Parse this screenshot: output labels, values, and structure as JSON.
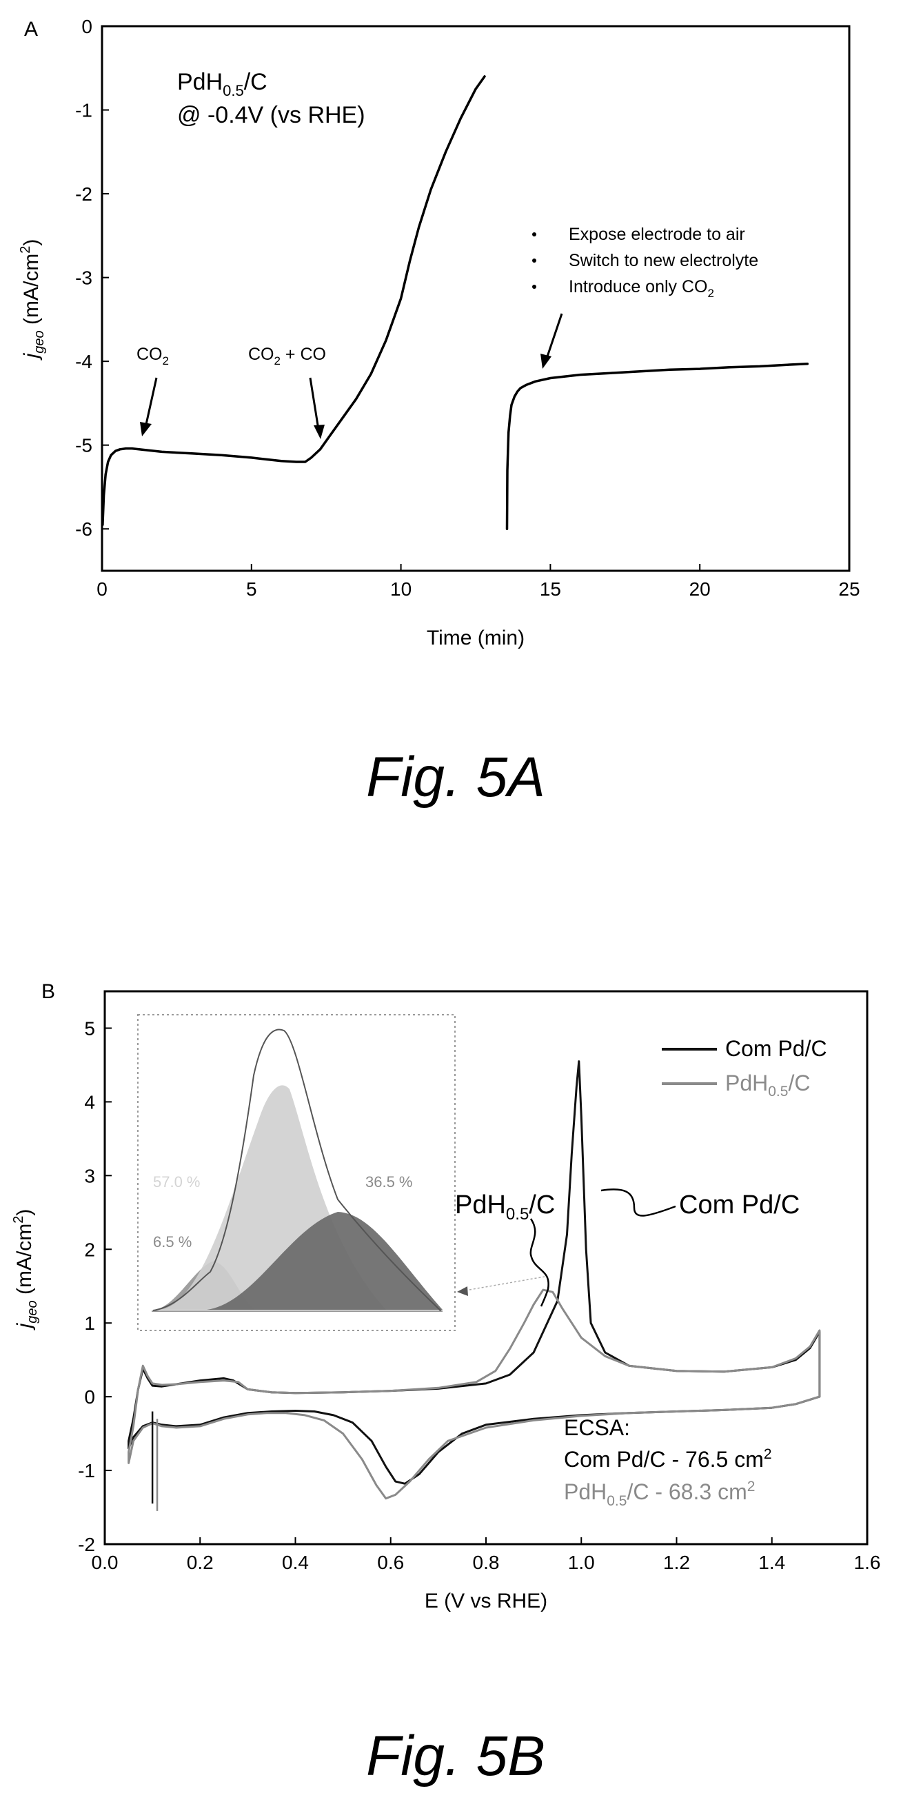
{
  "chart_data": [
    {
      "type": "line",
      "panel_label": "A",
      "xlabel": "Time (min)",
      "ylabel": {
        "base": "j",
        "sub": "geo",
        "rest": " (mA/cm",
        "sup": "2",
        "end": ")"
      },
      "xlim": [
        0,
        25
      ],
      "ylim": [
        -6.5,
        0
      ],
      "xticks": [
        0,
        5,
        10,
        15,
        20,
        25
      ],
      "yticks": [
        0,
        -1,
        -2,
        -3,
        -4,
        -5,
        -6
      ],
      "condition": {
        "line1_a": "PdH",
        "line1_sub": "0.5",
        "line1_b": "/C",
        "line2": "@ -0.4V (vs RHE)"
      },
      "annotations": [
        {
          "id": "co2",
          "base": "CO",
          "sub": "2",
          "rest": ""
        },
        {
          "id": "co2co",
          "base": "CO",
          "sub": "2",
          "rest": " + CO"
        }
      ],
      "bullets": [
        "Expose electrode to air",
        "Switch to new electrolyte",
        "Introduce only CO",
        "2"
      ],
      "series": [
        {
          "x": [
            0.02,
            0.06,
            0.12,
            0.2,
            0.3,
            0.45,
            0.6,
            0.8,
            1.0,
            1.5,
            2.0,
            2.5,
            3,
            4,
            5,
            5.5,
            6,
            6.5,
            6.8,
            7.0,
            7.3,
            7.6,
            8.0,
            8.5,
            9.0,
            9.5,
            10.0,
            10.3,
            10.6,
            11.0,
            11.5,
            12.0,
            12.5,
            12.8
          ],
          "y": [
            -5.95,
            -5.6,
            -5.35,
            -5.2,
            -5.12,
            -5.07,
            -5.05,
            -5.04,
            -5.04,
            -5.06,
            -5.08,
            -5.09,
            -5.1,
            -5.12,
            -5.15,
            -5.17,
            -5.19,
            -5.2,
            -5.2,
            -5.15,
            -5.05,
            -4.9,
            -4.7,
            -4.45,
            -4.15,
            -3.75,
            -3.25,
            -2.8,
            -2.4,
            -1.95,
            -1.5,
            -1.1,
            -0.75,
            -0.6
          ]
        },
        {
          "x": [
            13.55,
            13.56,
            13.6,
            13.65,
            13.7,
            13.8,
            13.9,
            14.0,
            14.2,
            14.5,
            15,
            16,
            17,
            18,
            19,
            20,
            21,
            22,
            23,
            23.6
          ],
          "y": [
            -6.0,
            -5.3,
            -4.85,
            -4.65,
            -4.52,
            -4.42,
            -4.36,
            -4.32,
            -4.28,
            -4.24,
            -4.2,
            -4.16,
            -4.14,
            -4.12,
            -4.1,
            -4.09,
            -4.07,
            -4.06,
            -4.04,
            -4.03
          ]
        }
      ]
    },
    {
      "type": "line",
      "panel_label": "B",
      "xlabel": "E (V vs RHE)",
      "ylabel": {
        "base": "j",
        "sub": "geo",
        "rest": " (mA/cm",
        "sup": "2",
        "end": ")"
      },
      "xlim": [
        0.0,
        1.6
      ],
      "ylim": [
        -2,
        5.5
      ],
      "xticks": [
        "0.0",
        "0.2",
        "0.4",
        "0.6",
        "0.8",
        "1.0",
        "1.2",
        "1.4",
        "1.6"
      ],
      "yticks": [
        5,
        4,
        3,
        2,
        1,
        0,
        -1,
        -2
      ],
      "legend": {
        "position": "top-right",
        "entries": [
          {
            "label": "Com Pd/C",
            "color": "#111111"
          },
          {
            "label_a": "PdH",
            "label_sub": "0.5",
            "label_b": "/C",
            "color": "#8a8a8a"
          }
        ]
      },
      "curve_labels": {
        "pdh_a": "PdH",
        "pdh_sub": "0.5",
        "pdh_b": "/C",
        "com": "Com Pd/C"
      },
      "ecsa": {
        "title": "ECSA:",
        "com": "Com Pd/C - 76.5 cm",
        "com_sup": "2",
        "pdh_a": "PdH",
        "pdh_sub": "0.5",
        "pdh_b": "/C - 68.3 cm",
        "pdh_sup": "2"
      },
      "inset": {
        "labels": [
          "57.0 %",
          "36.5 %",
          "6.5 %"
        ]
      },
      "series": [
        {
          "name": "Com Pd/C",
          "color": "#111111",
          "x": [
            0.05,
            0.06,
            0.07,
            0.08,
            0.09,
            0.1,
            0.12,
            0.15,
            0.2,
            0.25,
            0.27,
            0.3,
            0.35,
            0.4,
            0.5,
            0.6,
            0.7,
            0.8,
            0.85,
            0.9,
            0.95,
            0.97,
            0.98,
            0.99,
            0.995,
            1.0,
            1.01,
            1.02,
            1.05,
            1.1,
            1.2,
            1.3,
            1.4,
            1.45,
            1.48,
            1.5,
            1.5,
            1.45,
            1.4,
            1.3,
            1.2,
            1.1,
            1.0,
            0.9,
            0.8,
            0.75,
            0.7,
            0.66,
            0.63,
            0.61,
            0.59,
            0.56,
            0.52,
            0.48,
            0.44,
            0.4,
            0.35,
            0.3,
            0.25,
            0.2,
            0.15,
            0.12,
            0.1,
            0.08,
            0.06,
            0.05
          ],
          "y": [
            -0.6,
            -0.3,
            0.1,
            0.38,
            0.25,
            0.15,
            0.14,
            0.17,
            0.22,
            0.25,
            0.22,
            0.1,
            0.06,
            0.05,
            0.06,
            0.08,
            0.11,
            0.18,
            0.3,
            0.6,
            1.3,
            2.2,
            3.3,
            4.2,
            4.55,
            3.8,
            2.0,
            1.0,
            0.6,
            0.42,
            0.35,
            0.34,
            0.4,
            0.5,
            0.66,
            0.88,
            0.0,
            -0.1,
            -0.15,
            -0.18,
            -0.2,
            -0.22,
            -0.25,
            -0.3,
            -0.38,
            -0.5,
            -0.75,
            -1.05,
            -1.18,
            -1.15,
            -0.95,
            -0.6,
            -0.35,
            -0.25,
            -0.2,
            -0.19,
            -0.2,
            -0.22,
            -0.28,
            -0.38,
            -0.4,
            -0.38,
            -0.35,
            -0.4,
            -0.55,
            -0.7
          ]
        },
        {
          "name": "PdH0.5/C",
          "color": "#8a8a8a",
          "x": [
            0.05,
            0.06,
            0.07,
            0.08,
            0.09,
            0.1,
            0.12,
            0.15,
            0.2,
            0.25,
            0.28,
            0.3,
            0.35,
            0.4,
            0.5,
            0.6,
            0.7,
            0.78,
            0.82,
            0.85,
            0.88,
            0.9,
            0.92,
            0.94,
            0.96,
            1.0,
            1.05,
            1.1,
            1.2,
            1.3,
            1.4,
            1.45,
            1.48,
            1.5,
            1.5,
            1.45,
            1.4,
            1.3,
            1.2,
            1.1,
            1.0,
            0.9,
            0.8,
            0.72,
            0.68,
            0.64,
            0.61,
            0.59,
            0.57,
            0.54,
            0.5,
            0.46,
            0.42,
            0.38,
            0.34,
            0.3,
            0.25,
            0.2,
            0.15,
            0.12,
            0.1,
            0.08,
            0.06,
            0.05
          ],
          "y": [
            -0.75,
            -0.4,
            0.1,
            0.42,
            0.28,
            0.18,
            0.16,
            0.17,
            0.2,
            0.22,
            0.2,
            0.1,
            0.06,
            0.05,
            0.06,
            0.08,
            0.12,
            0.2,
            0.35,
            0.65,
            1.0,
            1.25,
            1.45,
            1.42,
            1.2,
            0.8,
            0.55,
            0.42,
            0.35,
            0.34,
            0.4,
            0.52,
            0.68,
            0.9,
            0.0,
            -0.1,
            -0.15,
            -0.18,
            -0.2,
            -0.22,
            -0.26,
            -0.32,
            -0.42,
            -0.6,
            -0.85,
            -1.15,
            -1.33,
            -1.38,
            -1.2,
            -0.85,
            -0.5,
            -0.32,
            -0.25,
            -0.22,
            -0.22,
            -0.24,
            -0.3,
            -0.4,
            -0.42,
            -0.4,
            -0.36,
            -0.42,
            -0.6,
            -0.9
          ]
        }
      ],
      "spikes": [
        {
          "x": 0.1,
          "y0": -0.2,
          "y1": -1.45,
          "color": "#111111"
        },
        {
          "x": 0.11,
          "y0": -0.3,
          "y1": -1.55,
          "color": "#8a8a8a"
        }
      ]
    }
  ],
  "captions": {
    "fig_a": "Fig. 5A",
    "fig_b": "Fig. 5B"
  }
}
